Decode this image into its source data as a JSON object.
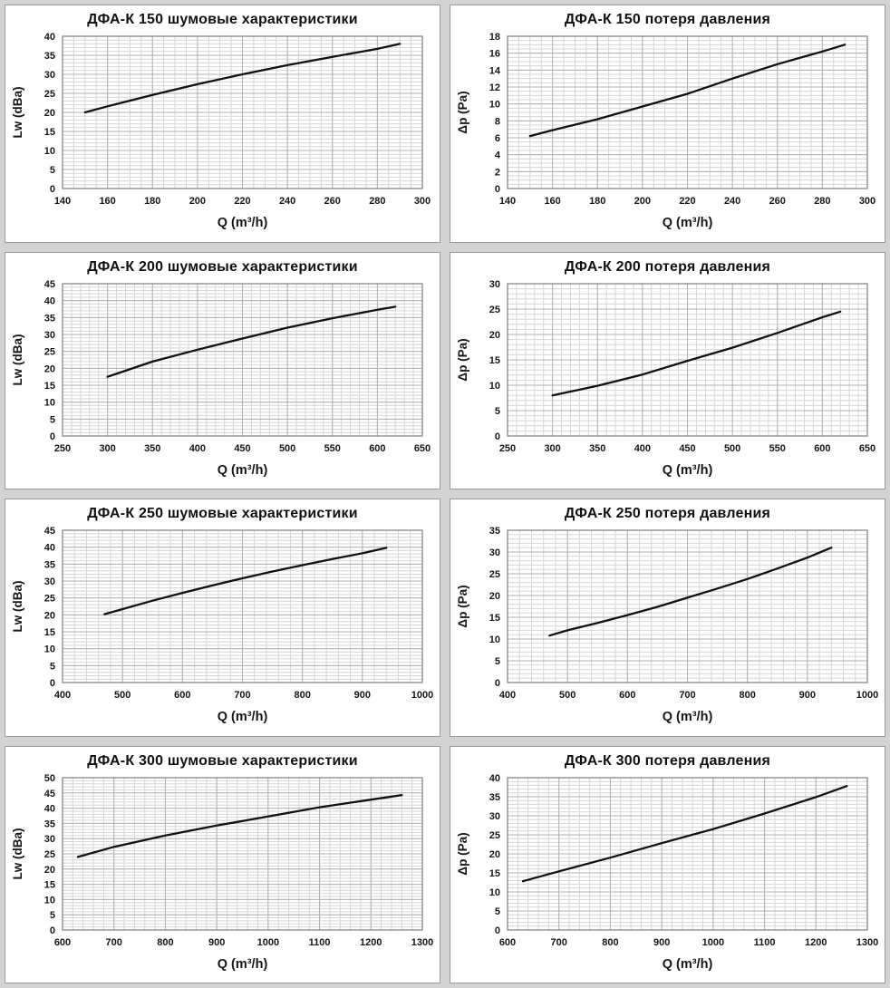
{
  "page": {
    "background": "#d3d3d3",
    "panel_background": "#ffffff",
    "panel_border": "#9a9a9a",
    "curve_color": "#111111",
    "minor_grid_color": "#d6d6d6",
    "major_grid_color": "#b2b2b2",
    "plot_border_color": "#7d7d7d"
  },
  "chart_data": [
    {
      "id": "dfa-k-150-noise",
      "type": "line",
      "title": "ДФА-К 150 шумовые характеристики",
      "xlabel": "Q (m³/h)",
      "ylabel": "Lw (dBa)",
      "xlim": [
        140,
        300
      ],
      "ylim": [
        0,
        40
      ],
      "xticks": [
        140,
        160,
        180,
        200,
        220,
        240,
        260,
        280,
        300
      ],
      "yticks": [
        0,
        5,
        10,
        15,
        20,
        25,
        30,
        35,
        40
      ],
      "xminor_div": 4,
      "yminor_div": 5,
      "grid": true,
      "legend": "none",
      "x": [
        150,
        160,
        180,
        200,
        220,
        240,
        260,
        280,
        290
      ],
      "y": [
        20.0,
        21.6,
        24.6,
        27.4,
        30.0,
        32.4,
        34.6,
        36.7,
        38.0
      ]
    },
    {
      "id": "dfa-k-150-pressure",
      "type": "line",
      "title": "ДФА-К 150 потеря давления",
      "xlabel": "Q (m³/h)",
      "ylabel": "Δp (Pa)",
      "xlim": [
        140,
        300
      ],
      "ylim": [
        0,
        18
      ],
      "xticks": [
        140,
        160,
        180,
        200,
        220,
        240,
        260,
        280,
        300
      ],
      "yticks": [
        0,
        2,
        4,
        6,
        8,
        10,
        12,
        14,
        16,
        18
      ],
      "xminor_div": 4,
      "yminor_div": 4,
      "grid": true,
      "legend": "none",
      "x": [
        150,
        160,
        180,
        200,
        220,
        240,
        260,
        280,
        290
      ],
      "y": [
        6.2,
        6.9,
        8.2,
        9.7,
        11.2,
        13.0,
        14.7,
        16.2,
        17.0
      ]
    },
    {
      "id": "dfa-k-200-noise",
      "type": "line",
      "title": "ДФА-К 200 шумовые характеристики",
      "xlabel": "Q (m³/h)",
      "ylabel": "Lw (dBa)",
      "xlim": [
        250,
        650
      ],
      "ylim": [
        0,
        45
      ],
      "xticks": [
        250,
        300,
        350,
        400,
        450,
        500,
        550,
        600,
        650
      ],
      "yticks": [
        0,
        5,
        10,
        15,
        20,
        25,
        30,
        35,
        40,
        45
      ],
      "xminor_div": 5,
      "yminor_div": 5,
      "grid": true,
      "legend": "none",
      "x": [
        300,
        350,
        400,
        450,
        500,
        550,
        600,
        620
      ],
      "y": [
        17.5,
        22.0,
        25.5,
        28.8,
        32.0,
        34.8,
        37.3,
        38.2
      ]
    },
    {
      "id": "dfa-k-200-pressure",
      "type": "line",
      "title": "ДФА-К 200 потеря давления",
      "xlabel": "Q (m³/h)",
      "ylabel": "Δp (Pa)",
      "xlim": [
        250,
        650
      ],
      "ylim": [
        0,
        30
      ],
      "xticks": [
        250,
        300,
        350,
        400,
        450,
        500,
        550,
        600,
        650
      ],
      "yticks": [
        0,
        5,
        10,
        15,
        20,
        25,
        30
      ],
      "xminor_div": 5,
      "yminor_div": 5,
      "grid": true,
      "legend": "none",
      "x": [
        300,
        350,
        400,
        450,
        500,
        550,
        600,
        620
      ],
      "y": [
        8.0,
        9.9,
        12.1,
        14.8,
        17.4,
        20.3,
        23.4,
        24.5
      ]
    },
    {
      "id": "dfa-k-250-noise",
      "type": "line",
      "title": "ДФА-К 250 шумовые характеристики",
      "xlabel": "Q (m³/h)",
      "ylabel": "Lw (dBa)",
      "xlim": [
        400,
        1000
      ],
      "ylim": [
        0,
        45
      ],
      "xticks": [
        400,
        500,
        600,
        700,
        800,
        900,
        1000
      ],
      "yticks": [
        0,
        5,
        10,
        15,
        20,
        25,
        30,
        35,
        40,
        45
      ],
      "xminor_div": 5,
      "yminor_div": 5,
      "grid": true,
      "legend": "none",
      "x": [
        470,
        500,
        550,
        600,
        650,
        700,
        750,
        800,
        850,
        900,
        940
      ],
      "y": [
        20.2,
        21.7,
        24.2,
        26.5,
        28.7,
        30.8,
        32.8,
        34.7,
        36.5,
        38.2,
        39.8
      ]
    },
    {
      "id": "dfa-k-250-pressure",
      "type": "line",
      "title": "ДФА-К 250 потеря давления",
      "xlabel": "Q (m³/h)",
      "ylabel": "Δp (Pa)",
      "xlim": [
        400,
        1000
      ],
      "ylim": [
        0,
        35
      ],
      "xticks": [
        400,
        500,
        600,
        700,
        800,
        900,
        1000
      ],
      "yticks": [
        0,
        5,
        10,
        15,
        20,
        25,
        30,
        35
      ],
      "xminor_div": 5,
      "yminor_div": 5,
      "grid": true,
      "legend": "none",
      "x": [
        470,
        500,
        550,
        600,
        650,
        700,
        750,
        800,
        850,
        900,
        940
      ],
      "y": [
        10.8,
        12.0,
        13.7,
        15.5,
        17.4,
        19.5,
        21.6,
        23.8,
        26.2,
        28.7,
        31.0
      ]
    },
    {
      "id": "dfa-k-300-noise",
      "type": "line",
      "title": "ДФА-К 300 шумовые характеристики",
      "xlabel": "Q (m³/h)",
      "ylabel": "Lw (dBa)",
      "xlim": [
        600,
        1300
      ],
      "ylim": [
        0,
        50
      ],
      "xticks": [
        600,
        700,
        800,
        900,
        1000,
        1100,
        1200,
        1300
      ],
      "yticks": [
        0,
        5,
        10,
        15,
        20,
        25,
        30,
        35,
        40,
        45,
        50
      ],
      "xminor_div": 5,
      "yminor_div": 5,
      "grid": true,
      "legend": "none",
      "x": [
        630,
        700,
        800,
        900,
        1000,
        1100,
        1200,
        1260
      ],
      "y": [
        24.0,
        27.3,
        31.0,
        34.3,
        37.3,
        40.3,
        42.8,
        44.3
      ]
    },
    {
      "id": "dfa-k-300-pressure",
      "type": "line",
      "title": "ДФА-К 300 потеря давления",
      "xlabel": "Q (m³/h)",
      "ylabel": "Δp (Pa)",
      "xlim": [
        600,
        1300
      ],
      "ylim": [
        0,
        40
      ],
      "xticks": [
        600,
        700,
        800,
        900,
        1000,
        1100,
        1200,
        1300
      ],
      "yticks": [
        0,
        5,
        10,
        15,
        20,
        25,
        30,
        35,
        40
      ],
      "xminor_div": 5,
      "yminor_div": 5,
      "grid": true,
      "legend": "none",
      "x": [
        630,
        700,
        800,
        900,
        1000,
        1100,
        1200,
        1260
      ],
      "y": [
        12.8,
        15.4,
        19.0,
        22.8,
        26.5,
        30.6,
        34.9,
        37.8
      ]
    }
  ]
}
